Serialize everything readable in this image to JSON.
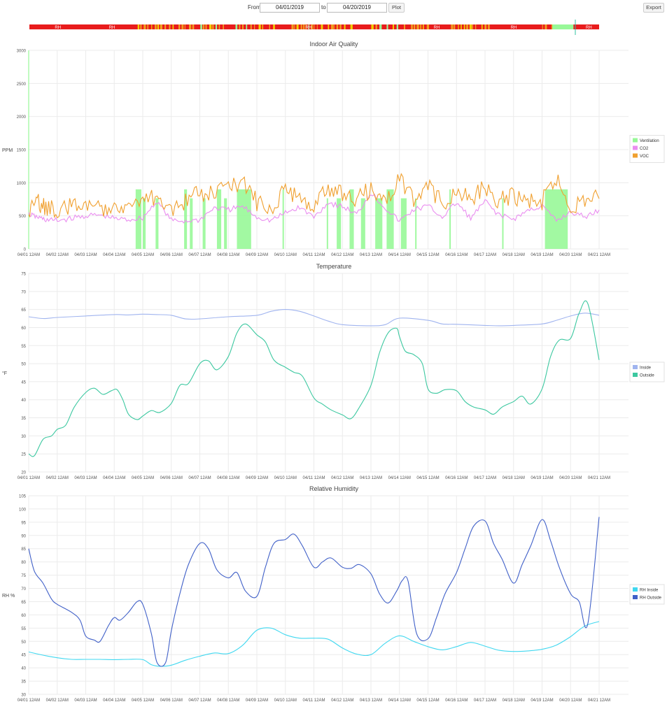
{
  "controls": {
    "from_label": "From",
    "from_value": "04/01/2019",
    "to_label": "to",
    "to_value": "04/20/2019",
    "plot_label": "Plot",
    "export_label": "Export"
  },
  "timeline": {
    "labels": [
      "RH",
      "RH",
      "RH",
      "RH",
      "RH",
      "RH"
    ],
    "colors": {
      "rh": "#e81c1c",
      "ventilation": "#98f898",
      "voc": "#f0a020",
      "co2": "#f0d000"
    }
  },
  "x_ticks": [
    "04/01 12AM",
    "04/02 12AM",
    "04/03 12AM",
    "04/04 12AM",
    "04/05 12AM",
    "04/06 12AM",
    "04/07 12AM",
    "04/08 12AM",
    "04/09 12AM",
    "04/10 12AM",
    "04/11 12AM",
    "04/12 12AM",
    "04/13 12AM",
    "04/14 12AM",
    "04/15 12AM",
    "04/16 12AM",
    "04/17 12AM",
    "04/18 12AM",
    "04/19 12AM",
    "04/20 12AM",
    "04/21 12AM"
  ],
  "chart_data": [
    {
      "type": "line",
      "title": "Indoor Air Quality",
      "ylabel": "PPM",
      "xlabel": "",
      "x_unit": "days from 04/01 12AM",
      "ylim": [
        0,
        3000
      ],
      "yticks": [
        0,
        500,
        1000,
        1500,
        2000,
        2500,
        3000
      ],
      "grid": true,
      "legend_position": "right",
      "series": [
        {
          "name": "Ventilation",
          "type": "area",
          "color": "#98f898",
          "intervals": [
            [
              3.75,
              3.95
            ],
            [
              4.0,
              4.1
            ],
            [
              4.45,
              4.55
            ],
            [
              5.45,
              5.55
            ],
            [
              5.65,
              5.75
            ],
            [
              6.1,
              6.2
            ],
            [
              6.6,
              6.75
            ],
            [
              6.85,
              6.95
            ],
            [
              7.3,
              7.8
            ],
            [
              8.9,
              8.95
            ],
            [
              10.45,
              10.5
            ],
            [
              10.8,
              10.95
            ],
            [
              11.25,
              11.4
            ],
            [
              11.65,
              11.8
            ],
            [
              12.15,
              12.4
            ],
            [
              12.55,
              12.8
            ],
            [
              13.05,
              13.25
            ],
            [
              13.55,
              13.6
            ],
            [
              14.75,
              14.8
            ],
            [
              16.6,
              16.65
            ],
            [
              18.1,
              18.9
            ]
          ],
          "level": 3000,
          "fill_level": 900
        },
        {
          "name": "CO2",
          "color": "#ea8ef0",
          "x": [
            0,
            0.3,
            0.6,
            1,
            1.5,
            2,
            2.5,
            3,
            3.5,
            4,
            4.5,
            5,
            5.5,
            6,
            6.5,
            7,
            7.5,
            8,
            8.5,
            9,
            9.5,
            10,
            10.5,
            11,
            11.5,
            12,
            12.5,
            13,
            13.5,
            14,
            14.5,
            15,
            15.5,
            16,
            16.5,
            17,
            17.5,
            18,
            18.5,
            19,
            19.5,
            20
          ],
          "y": [
            520,
            480,
            440,
            430,
            460,
            500,
            510,
            460,
            440,
            470,
            720,
            430,
            420,
            440,
            620,
            590,
            640,
            480,
            430,
            540,
            630,
            480,
            700,
            640,
            520,
            850,
            620,
            420,
            590,
            650,
            480,
            700,
            460,
            720,
            510,
            450,
            580,
            650,
            420,
            560,
            480,
            590
          ]
        },
        {
          "name": "VOC",
          "color": "#f0a030",
          "x": [
            0,
            0.3,
            0.6,
            1,
            1.5,
            2,
            2.5,
            3,
            3.5,
            4,
            4.5,
            5,
            5.5,
            6,
            6.5,
            7,
            7.5,
            8,
            8.5,
            9,
            9.5,
            10,
            10.5,
            11,
            11.5,
            12,
            12.5,
            13,
            13.5,
            14,
            14.5,
            15,
            15.5,
            16,
            16.5,
            17,
            17.5,
            18,
            18.5,
            19,
            19.5,
            20
          ],
          "y": [
            540,
            700,
            640,
            570,
            650,
            700,
            590,
            700,
            660,
            720,
            780,
            620,
            720,
            840,
            850,
            900,
            1050,
            700,
            620,
            920,
            760,
            690,
            940,
            820,
            770,
            900,
            700,
            1050,
            720,
            940,
            680,
            890,
            760,
            940,
            730,
            800,
            700,
            720,
            1050,
            620,
            740,
            760
          ]
        }
      ]
    },
    {
      "type": "line",
      "title": "Temperature",
      "ylabel": "°F",
      "xlabel": "",
      "x_unit": "days from 04/01 12AM",
      "ylim": [
        20,
        75
      ],
      "yticks": [
        20,
        25,
        30,
        35,
        40,
        45,
        50,
        55,
        60,
        65,
        70,
        75
      ],
      "grid": true,
      "legend_position": "right",
      "series": [
        {
          "name": "Inside",
          "color": "#a0b4ef",
          "x": [
            0,
            0.5,
            1,
            2,
            3,
            3.5,
            4,
            4.5,
            5,
            5.5,
            6,
            7,
            8,
            8.5,
            9,
            9.5,
            10,
            10.5,
            11,
            12,
            12.5,
            13,
            14,
            14.5,
            15,
            16,
            16.5,
            17,
            18,
            18.5,
            19,
            19.5,
            20
          ],
          "y": [
            63,
            62.5,
            62.8,
            63.2,
            63.6,
            63.5,
            63.7,
            63.6,
            63.4,
            62.4,
            62.4,
            63,
            63.4,
            64.5,
            65,
            64.5,
            63.2,
            61.8,
            60.8,
            60.5,
            60.8,
            62.6,
            62,
            61,
            60.9,
            60.6,
            60.5,
            60.6,
            61,
            62,
            63.2,
            64,
            63.4
          ]
        },
        {
          "name": "Outside",
          "color": "#3cc8a0",
          "x": [
            0,
            0.2,
            0.5,
            0.8,
            1,
            1.3,
            1.6,
            2,
            2.3,
            2.6,
            2.9,
            3.1,
            3.3,
            3.5,
            3.8,
            4,
            4.3,
            4.6,
            5,
            5.3,
            5.6,
            6,
            6.3,
            6.6,
            7,
            7.3,
            7.6,
            8,
            8.3,
            8.6,
            9,
            9.3,
            9.6,
            10,
            10.3,
            10.6,
            11,
            11.3,
            11.6,
            12,
            12.3,
            12.6,
            12.9,
            13,
            13.2,
            13.5,
            13.8,
            14,
            14.3,
            14.6,
            15,
            15.3,
            15.6,
            16,
            16.3,
            16.6,
            17,
            17.3,
            17.6,
            18,
            18.3,
            18.6,
            19,
            19.3,
            19.6,
            20
          ],
          "y": [
            25,
            24.5,
            29,
            30,
            31.8,
            33,
            38,
            42,
            43.2,
            41.5,
            42.5,
            42.8,
            40,
            36,
            34.5,
            35.5,
            37,
            36.5,
            39,
            44,
            44.5,
            50,
            50.8,
            48.3,
            52,
            58.5,
            61,
            58,
            56,
            51,
            49,
            47.6,
            46.5,
            40.5,
            38.8,
            37.2,
            35.8,
            34.8,
            38,
            44,
            53,
            58.5,
            59.8,
            57.5,
            53.5,
            52.5,
            50,
            43,
            41.8,
            42.8,
            42.5,
            39.5,
            38,
            37.2,
            36,
            38,
            39.5,
            41,
            38.8,
            43,
            52,
            56.5,
            57,
            64,
            66.7,
            51
          ]
        }
      ]
    },
    {
      "type": "line",
      "title": "Relative Humidity",
      "ylabel": "RH %",
      "xlabel": "",
      "x_unit": "days from 04/01 12AM",
      "ylim": [
        30,
        105
      ],
      "yticks": [
        30,
        35,
        40,
        45,
        50,
        55,
        60,
        65,
        70,
        75,
        80,
        85,
        90,
        95,
        100,
        105
      ],
      "grid": true,
      "legend_position": "right",
      "series": [
        {
          "name": "RH Inside",
          "color": "#40d8f0",
          "x": [
            0,
            0.5,
            1,
            1.5,
            2,
            2.5,
            3,
            3.5,
            4,
            4.3,
            4.6,
            5,
            5.5,
            6,
            6.5,
            7,
            7.5,
            8,
            8.5,
            9,
            9.5,
            10,
            10.5,
            11,
            11.5,
            12,
            12.5,
            13,
            13.5,
            14,
            14.5,
            15,
            15.5,
            16,
            16.5,
            17,
            17.5,
            18,
            18.5,
            19,
            19.5,
            20
          ],
          "y": [
            46,
            44.8,
            43.8,
            43.2,
            43.2,
            43.2,
            43.1,
            43.2,
            43.1,
            41.2,
            40.6,
            41,
            42.9,
            44.4,
            45.6,
            45.4,
            48.5,
            54.2,
            55,
            52.5,
            51.2,
            51.2,
            50.8,
            47.5,
            45.2,
            45,
            49.3,
            52.1,
            50,
            48,
            46.8,
            48,
            49.6,
            48.2,
            46.6,
            46.2,
            46.4,
            47,
            48.6,
            51.8,
            55.8,
            57.5
          ]
        },
        {
          "name": "RH Outside",
          "color": "#4060c8",
          "x": [
            0,
            0.2,
            0.5,
            0.8,
            1,
            1.5,
            1.8,
            2,
            2.3,
            2.5,
            2.8,
            3,
            3.2,
            3.5,
            3.8,
            4,
            4.3,
            4.5,
            4.8,
            5,
            5.3,
            5.6,
            6,
            6.3,
            6.6,
            7,
            7.3,
            7.6,
            8,
            8.3,
            8.6,
            9,
            9.3,
            9.6,
            10,
            10.3,
            10.6,
            11,
            11.3,
            11.6,
            12,
            12.3,
            12.6,
            12.9,
            13.1,
            13.3,
            13.6,
            14,
            14.3,
            14.6,
            15,
            15.3,
            15.6,
            16,
            16.3,
            16.6,
            17,
            17.3,
            17.6,
            18,
            18.3,
            18.6,
            19,
            19.3,
            19.6,
            20
          ],
          "y": [
            85,
            76.5,
            72,
            66,
            64,
            61,
            58,
            52,
            50.5,
            50,
            56,
            59,
            58,
            61,
            65,
            64,
            53,
            42,
            42,
            54,
            68,
            79,
            87,
            85,
            77,
            74,
            76,
            69,
            67,
            78,
            87,
            88.5,
            90.5,
            86,
            78,
            80,
            81.5,
            78,
            77.6,
            79,
            75.5,
            68,
            64.5,
            69,
            73,
            72.8,
            53,
            51,
            59,
            68,
            76,
            85,
            93.5,
            95.5,
            87,
            81,
            72,
            79,
            86,
            96,
            88,
            78,
            68,
            65,
            56.5,
            97
          ]
        }
      ]
    }
  ]
}
